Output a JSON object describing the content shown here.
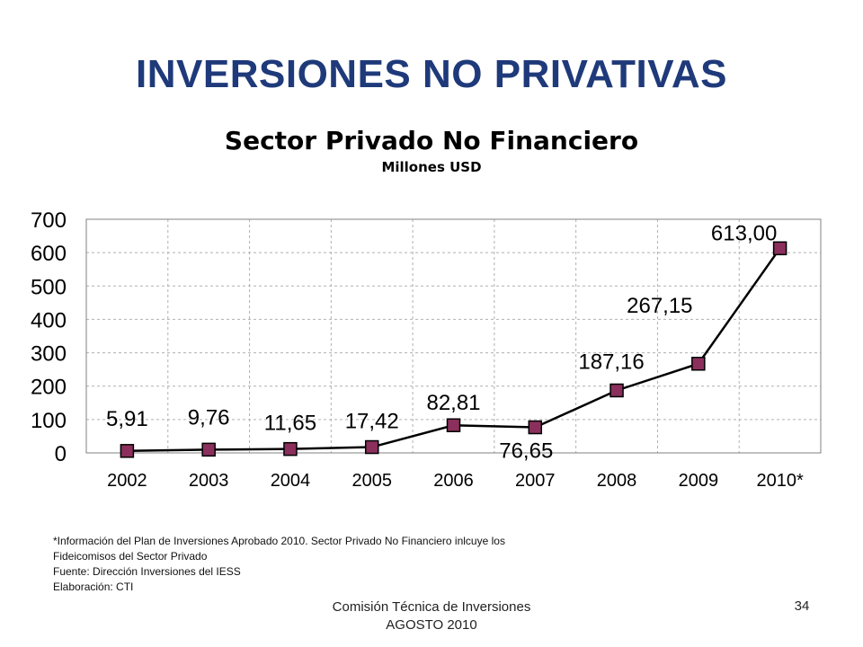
{
  "slide": {
    "title": "INVERSIONES NO PRIVATIVAS",
    "notes": [
      "*Información del Plan de Inversiones Aprobado 2010. Sector Privado No Financiero inlcuye los",
      "Fideicomisos del Sector Privado",
      "Fuente: Dirección Inversiones del IESS",
      "Elaboración: CTI"
    ],
    "footer": {
      "line1": "Comisión Técnica de Inversiones",
      "line2": "AGOSTO 2010"
    },
    "page_number": "34"
  },
  "chart_data": {
    "type": "line",
    "title": "Sector Privado No Financiero",
    "subtitle": "Millones USD",
    "xlabel": "",
    "ylabel": "",
    "categories": [
      "2002",
      "2003",
      "2004",
      "2005",
      "2006",
      "2007",
      "2008",
      "2009",
      "2010*"
    ],
    "series": [
      {
        "values": [
          5.91,
          9.76,
          11.65,
          17.42,
          82.81,
          76.65,
          187.16,
          267.15,
          613.0
        ],
        "data_labels": [
          "5,91",
          "9,76",
          "11,65",
          "17,42",
          "82,81",
          "76,65",
          "187,16",
          "267,15",
          "613,00"
        ],
        "line_color": "#000000",
        "marker_color": "#8b2f5c"
      }
    ],
    "ylim": [
      0,
      700
    ],
    "yticks": [
      0,
      100,
      200,
      300,
      400,
      500,
      600,
      700
    ],
    "ytick_labels": [
      "0",
      "100",
      "200",
      "300",
      "400",
      "500",
      "600",
      "700"
    ],
    "grid": true
  }
}
